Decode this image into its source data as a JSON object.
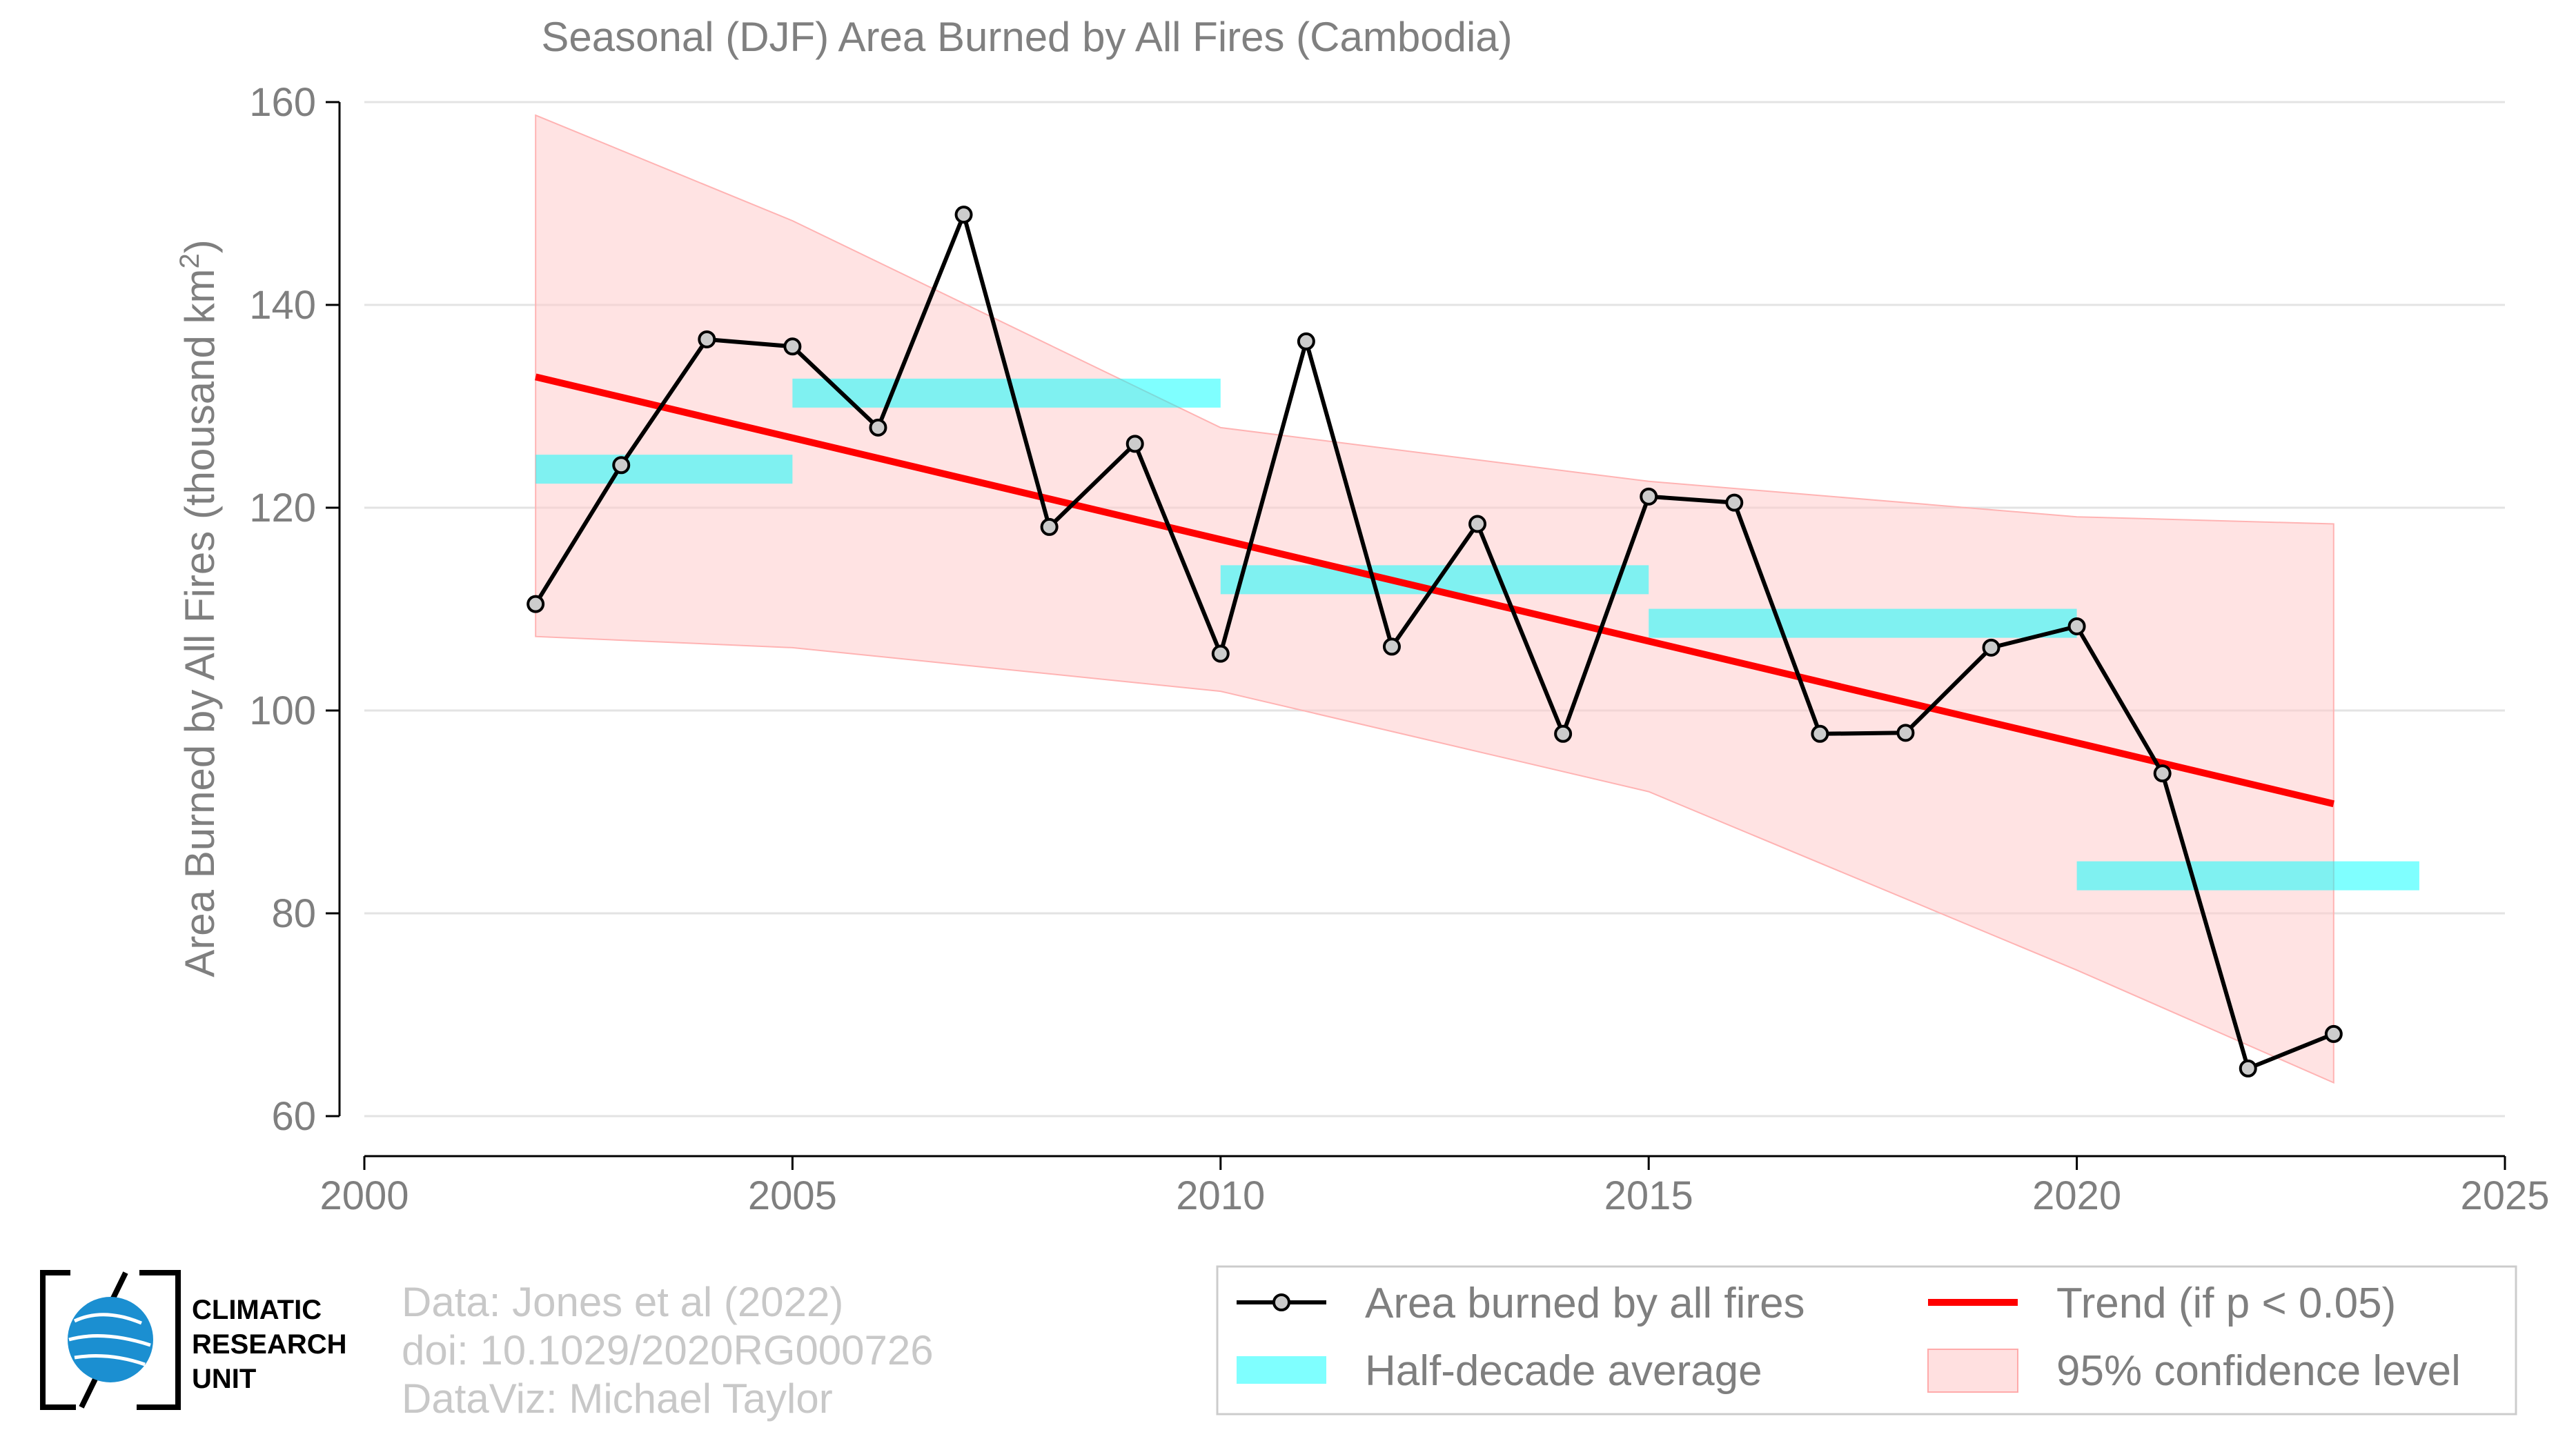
{
  "chart_data": {
    "type": "line",
    "title": "Seasonal (DJF) Area Burned by All Fires (Cambodia)",
    "ylabel": "Area Burned by All Fires (thousand km",
    "ylabel_sup": "2",
    "ylabel_close": ")",
    "xlabel": "",
    "xlim": [
      2000,
      2025
    ],
    "ylim": [
      60,
      160
    ],
    "x_ticks": [
      "2000",
      "2005",
      "2010",
      "2015",
      "2020",
      "2025"
    ],
    "y_ticks": [
      "60",
      "80",
      "100",
      "120",
      "140",
      "160"
    ],
    "grid": "horizontal",
    "legend_position": "bottom-right",
    "series": [
      {
        "name": "Area burned by all fires",
        "color": "#000000",
        "marker_color": "#cccccc",
        "x": [
          2002,
          2003,
          2004,
          2005,
          2006,
          2007,
          2008,
          2009,
          2010,
          2011,
          2012,
          2013,
          2014,
          2015,
          2016,
          2017,
          2018,
          2019,
          2020,
          2021,
          2022,
          2023
        ],
        "y": [
          110.5,
          124.2,
          136.6,
          135.9,
          127.9,
          148.9,
          118.1,
          126.3,
          105.6,
          136.4,
          106.3,
          118.4,
          97.7,
          121.1,
          120.5,
          97.7,
          97.8,
          106.2,
          108.3,
          93.8,
          64.7,
          68.1
        ]
      }
    ],
    "half_decade_average": {
      "name": "Half-decade average",
      "color": "#00ffff",
      "segments": [
        {
          "x0": 2002,
          "x1": 2005,
          "y": 123.8
        },
        {
          "x0": 2005,
          "x1": 2010,
          "y": 131.3
        },
        {
          "x0": 2010,
          "x1": 2015,
          "y": 112.9
        },
        {
          "x0": 2015,
          "x1": 2020,
          "y": 108.6
        },
        {
          "x0": 2020,
          "x1": 2024,
          "y": 83.7
        }
      ]
    },
    "trend": {
      "name": "Trend (if p < 0.05)",
      "color": "#ff0000",
      "x": [
        2002,
        2023
      ],
      "y": [
        132.9,
        90.8
      ]
    },
    "confidence_band": {
      "name": "95% confidence level",
      "color": "#ffcccc",
      "x": [
        2002,
        2005,
        2010,
        2015,
        2020,
        2023
      ],
      "upper": [
        158.7,
        148.3,
        127.9,
        122.6,
        119.1,
        118.4
      ],
      "lower": [
        107.3,
        106.2,
        101.9,
        92.0,
        74.4,
        63.3
      ]
    }
  },
  "credits": {
    "line1": "Data: Jones et al (2022)",
    "line2": "doi: 10.1029/2020RG000726",
    "line3": "DataViz: Michael Taylor"
  },
  "logo": {
    "line1": "CLIMATIC",
    "line2": "RESEARCH",
    "line3": "UNIT"
  }
}
